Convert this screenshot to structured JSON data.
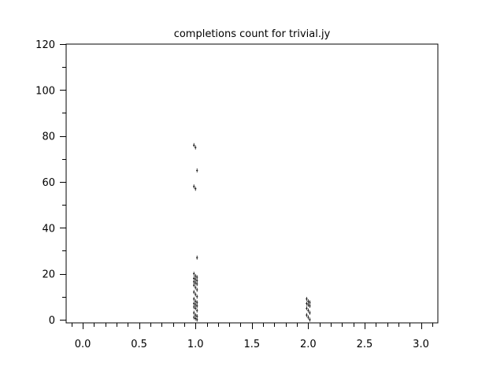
{
  "chart_data": {
    "type": "scatter",
    "title": "completions count for trivial.jy",
    "xlabel": "",
    "ylabel": "",
    "xlim": [
      -0.147,
      3.15
    ],
    "ylim": [
      -1.4,
      120
    ],
    "xticks": [
      0.0,
      0.5,
      1.0,
      1.5,
      2.0,
      2.5,
      3.0
    ],
    "xtick_labels": [
      "0.0",
      "0.5",
      "1.0",
      "1.5",
      "2.0",
      "2.5",
      "3.0"
    ],
    "yticks": [
      0,
      20,
      40,
      60,
      80,
      100,
      120
    ],
    "ytick_labels": [
      "0",
      "20",
      "40",
      "60",
      "80",
      "100",
      "120"
    ],
    "grid": false,
    "marker": "text-label",
    "series": [
      {
        "x": [
          1,
          1,
          1,
          1,
          1,
          1,
          1,
          1,
          1,
          1,
          1,
          1,
          1,
          1,
          1,
          1,
          1,
          1,
          1,
          1,
          1,
          1,
          1,
          1,
          1,
          1,
          1,
          1,
          1,
          1,
          1,
          1,
          1,
          1,
          1,
          1
        ],
        "y": [
          76,
          75,
          65,
          58,
          57,
          27,
          20,
          19,
          18.5,
          18,
          17.5,
          17,
          16.5,
          16,
          15.5,
          15,
          14,
          13,
          12,
          11,
          10,
          9,
          8,
          7.5,
          7,
          6.5,
          6,
          5.5,
          5,
          4,
          3,
          2,
          1.5,
          1,
          0.5,
          0
        ]
      },
      {
        "x": [
          2,
          2,
          2,
          2,
          2,
          2,
          2,
          2,
          2,
          2,
          2,
          2
        ],
        "y": [
          9,
          8,
          7.5,
          7,
          6.5,
          6,
          5,
          4,
          3,
          2,
          1,
          0
        ]
      }
    ]
  }
}
